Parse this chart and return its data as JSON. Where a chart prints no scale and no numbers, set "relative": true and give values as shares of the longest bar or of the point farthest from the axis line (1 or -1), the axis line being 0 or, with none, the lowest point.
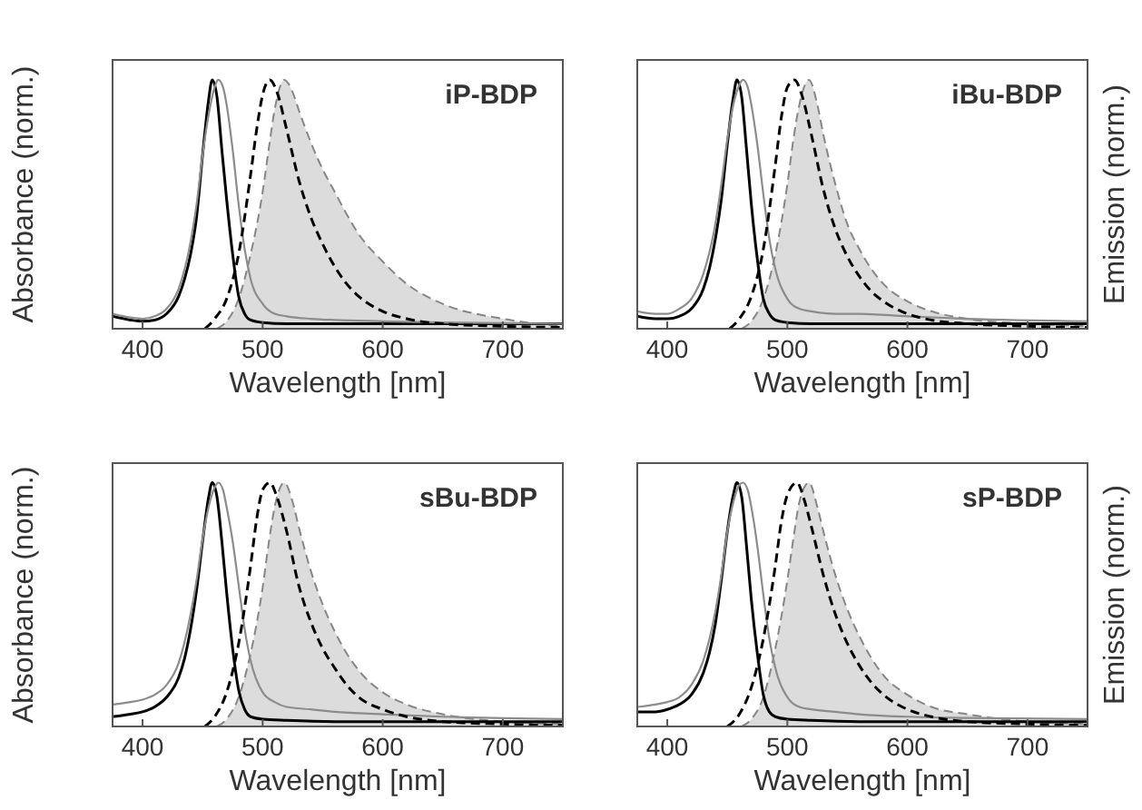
{
  "chart_data": [
    {
      "type": "line",
      "relative": true,
      "xlabel": "Wavelength [nm]",
      "ylabel": "Absorbance (norm.)",
      "annotations": [
        "iP-BDP"
      ],
      "xlim": [
        375,
        750
      ],
      "xticks": [
        400,
        500,
        600,
        700
      ],
      "series": [
        {
          "color": "#000000",
          "line_style": "solid",
          "x": [
            375,
            390,
            400,
            410,
            420,
            430,
            435,
            440,
            445,
            450,
            455,
            458,
            462,
            466,
            470,
            475,
            480,
            485,
            490,
            500,
            520,
            560,
            650,
            750
          ],
          "values": [
            0.05,
            0.035,
            0.03,
            0.035,
            0.06,
            0.13,
            0.2,
            0.3,
            0.45,
            0.7,
            0.92,
            1,
            0.93,
            0.72,
            0.52,
            0.3,
            0.13,
            0.06,
            0.035,
            0.025,
            0.02,
            0.02,
            0.02,
            0.02
          ]
        },
        {
          "color": "#8c8c8c",
          "line_style": "solid",
          "x": [
            375,
            390,
            400,
            410,
            420,
            430,
            440,
            445,
            450,
            455,
            460,
            463,
            467,
            470,
            475,
            480,
            485,
            490,
            500,
            510,
            520,
            540,
            560,
            600,
            650,
            750
          ],
          "values": [
            0.06,
            0.045,
            0.04,
            0.05,
            0.08,
            0.16,
            0.35,
            0.5,
            0.7,
            0.86,
            0.97,
            1,
            0.97,
            0.9,
            0.72,
            0.5,
            0.32,
            0.2,
            0.1,
            0.06,
            0.05,
            0.04,
            0.035,
            0.03,
            0.025,
            0.02
          ]
        },
        {
          "color": "#000000",
          "line_style": "dashed",
          "x": [
            452,
            460,
            470,
            480,
            490,
            495,
            500,
            506,
            512,
            520,
            530,
            540,
            550,
            560,
            570,
            580,
            600,
            620,
            650,
            700,
            750
          ],
          "values": [
            0,
            0.04,
            0.12,
            0.3,
            0.62,
            0.8,
            0.94,
            1,
            0.95,
            0.8,
            0.6,
            0.45,
            0.34,
            0.25,
            0.18,
            0.13,
            0.07,
            0.04,
            0.02,
            0.01,
            0.005
          ]
        },
        {
          "type": "area",
          "color": "#dcdcdc",
          "line_style": "dashed",
          "x": [
            462,
            470,
            480,
            490,
            500,
            505,
            510,
            518,
            525,
            530,
            540,
            550,
            560,
            570,
            580,
            600,
            620,
            650,
            700,
            750
          ],
          "values": [
            0,
            0.03,
            0.12,
            0.3,
            0.55,
            0.72,
            0.88,
            1,
            0.95,
            0.88,
            0.75,
            0.64,
            0.55,
            0.46,
            0.38,
            0.27,
            0.18,
            0.1,
            0.04,
            0.01
          ]
        }
      ]
    },
    {
      "type": "line",
      "relative": true,
      "xlabel": "Wavelength [nm]",
      "y2label": "Emission (norm.)",
      "annotations": [
        "iBu-BDP"
      ],
      "xlim": [
        375,
        750
      ],
      "xticks": [
        400,
        500,
        600,
        700
      ],
      "series": [
        {
          "color": "#000000",
          "line_style": "solid",
          "x": [
            375,
            390,
            400,
            410,
            420,
            430,
            435,
            440,
            445,
            450,
            455,
            458,
            462,
            466,
            470,
            475,
            480,
            485,
            490,
            500,
            520,
            560,
            650,
            750
          ],
          "values": [
            0.05,
            0.04,
            0.04,
            0.05,
            0.08,
            0.16,
            0.24,
            0.36,
            0.52,
            0.74,
            0.93,
            1,
            0.93,
            0.72,
            0.5,
            0.28,
            0.12,
            0.06,
            0.035,
            0.025,
            0.02,
            0.02,
            0.02,
            0.02
          ]
        },
        {
          "color": "#8c8c8c",
          "line_style": "solid",
          "x": [
            375,
            390,
            400,
            410,
            420,
            430,
            440,
            445,
            450,
            455,
            460,
            463,
            467,
            470,
            475,
            480,
            485,
            490,
            500,
            510,
            520,
            540,
            560,
            600,
            650,
            750
          ],
          "values": [
            0.07,
            0.06,
            0.06,
            0.08,
            0.12,
            0.22,
            0.42,
            0.58,
            0.76,
            0.9,
            0.98,
            1,
            0.97,
            0.9,
            0.74,
            0.54,
            0.36,
            0.24,
            0.12,
            0.08,
            0.07,
            0.06,
            0.06,
            0.05,
            0.04,
            0.03
          ]
        },
        {
          "color": "#000000",
          "line_style": "dashed",
          "x": [
            452,
            460,
            470,
            480,
            490,
            495,
            500,
            506,
            512,
            520,
            530,
            540,
            550,
            560,
            570,
            580,
            600,
            620,
            650,
            700,
            750
          ],
          "values": [
            0,
            0.04,
            0.13,
            0.32,
            0.66,
            0.85,
            0.97,
            1,
            0.94,
            0.78,
            0.56,
            0.4,
            0.29,
            0.21,
            0.15,
            0.11,
            0.06,
            0.035,
            0.02,
            0.01,
            0.005
          ]
        },
        {
          "type": "area",
          "color": "#dcdcdc",
          "line_style": "dashed",
          "x": [
            462,
            470,
            480,
            490,
            500,
            505,
            510,
            518,
            525,
            530,
            540,
            550,
            560,
            570,
            580,
            600,
            620,
            650,
            700,
            750
          ],
          "values": [
            0,
            0.03,
            0.12,
            0.3,
            0.58,
            0.76,
            0.9,
            1,
            0.9,
            0.78,
            0.58,
            0.42,
            0.32,
            0.24,
            0.18,
            0.11,
            0.07,
            0.04,
            0.02,
            0.01
          ]
        }
      ]
    },
    {
      "type": "line",
      "relative": true,
      "xlabel": "Wavelength [nm]",
      "ylabel": "Absorbance (norm.)",
      "annotations": [
        "sBu-BDP"
      ],
      "xlim": [
        375,
        750
      ],
      "xticks": [
        400,
        500,
        600,
        700
      ],
      "series": [
        {
          "color": "#000000",
          "line_style": "solid",
          "x": [
            375,
            390,
            400,
            410,
            420,
            430,
            435,
            440,
            445,
            450,
            455,
            458,
            462,
            466,
            470,
            475,
            480,
            485,
            490,
            500,
            520,
            560,
            650,
            750
          ],
          "values": [
            0.04,
            0.05,
            0.06,
            0.08,
            0.12,
            0.2,
            0.28,
            0.4,
            0.56,
            0.76,
            0.94,
            1,
            0.94,
            0.76,
            0.55,
            0.32,
            0.15,
            0.07,
            0.04,
            0.03,
            0.025,
            0.02,
            0.02,
            0.02
          ]
        },
        {
          "color": "#8c8c8c",
          "line_style": "solid",
          "x": [
            375,
            390,
            400,
            410,
            420,
            430,
            440,
            445,
            450,
            455,
            460,
            463,
            467,
            470,
            475,
            480,
            485,
            490,
            500,
            510,
            520,
            540,
            560,
            600,
            650,
            750
          ],
          "values": [
            0.09,
            0.1,
            0.11,
            0.13,
            0.17,
            0.26,
            0.46,
            0.6,
            0.77,
            0.9,
            0.98,
            1,
            0.97,
            0.9,
            0.76,
            0.58,
            0.4,
            0.27,
            0.14,
            0.1,
            0.08,
            0.07,
            0.06,
            0.05,
            0.04,
            0.03
          ]
        },
        {
          "color": "#000000",
          "line_style": "dashed",
          "x": [
            452,
            460,
            470,
            480,
            490,
            495,
            500,
            506,
            512,
            520,
            530,
            540,
            550,
            560,
            570,
            580,
            600,
            620,
            650,
            700,
            750
          ],
          "values": [
            0,
            0.04,
            0.14,
            0.34,
            0.66,
            0.85,
            0.97,
            1,
            0.94,
            0.8,
            0.58,
            0.43,
            0.32,
            0.24,
            0.17,
            0.12,
            0.07,
            0.04,
            0.02,
            0.01,
            0.005
          ]
        },
        {
          "type": "area",
          "color": "#dcdcdc",
          "line_style": "dashed",
          "x": [
            462,
            470,
            480,
            490,
            500,
            505,
            510,
            518,
            525,
            530,
            540,
            550,
            560,
            570,
            580,
            600,
            620,
            650,
            700,
            750
          ],
          "values": [
            0,
            0.03,
            0.12,
            0.3,
            0.57,
            0.75,
            0.9,
            1,
            0.92,
            0.82,
            0.64,
            0.5,
            0.39,
            0.3,
            0.23,
            0.14,
            0.09,
            0.05,
            0.02,
            0.01
          ]
        }
      ]
    },
    {
      "type": "line",
      "relative": true,
      "xlabel": "Wavelength [nm]",
      "y2label": "Emission (norm.)",
      "annotations": [
        "sP-BDP"
      ],
      "xlim": [
        375,
        750
      ],
      "xticks": [
        400,
        500,
        600,
        700
      ],
      "series": [
        {
          "color": "#000000",
          "line_style": "solid",
          "x": [
            375,
            390,
            400,
            410,
            420,
            430,
            435,
            440,
            445,
            450,
            455,
            458,
            462,
            466,
            470,
            475,
            480,
            485,
            490,
            500,
            520,
            560,
            650,
            750
          ],
          "values": [
            0.06,
            0.06,
            0.07,
            0.09,
            0.13,
            0.22,
            0.3,
            0.42,
            0.6,
            0.8,
            0.95,
            1,
            0.94,
            0.74,
            0.52,
            0.3,
            0.13,
            0.06,
            0.04,
            0.03,
            0.025,
            0.02,
            0.02,
            0.02
          ]
        },
        {
          "color": "#8c8c8c",
          "line_style": "solid",
          "x": [
            375,
            390,
            400,
            410,
            420,
            430,
            440,
            445,
            450,
            455,
            460,
            463,
            467,
            470,
            475,
            480,
            485,
            490,
            500,
            510,
            520,
            540,
            560,
            600,
            650,
            750
          ],
          "values": [
            0.08,
            0.09,
            0.1,
            0.12,
            0.17,
            0.27,
            0.47,
            0.62,
            0.8,
            0.92,
            0.99,
            1,
            0.97,
            0.9,
            0.74,
            0.54,
            0.36,
            0.24,
            0.12,
            0.08,
            0.07,
            0.06,
            0.05,
            0.04,
            0.035,
            0.03
          ]
        },
        {
          "color": "#000000",
          "line_style": "dashed",
          "x": [
            450,
            460,
            470,
            480,
            490,
            495,
            500,
            508,
            514,
            520,
            530,
            540,
            550,
            560,
            570,
            580,
            600,
            620,
            650,
            700,
            750
          ],
          "values": [
            0,
            0.05,
            0.16,
            0.36,
            0.66,
            0.84,
            0.95,
            1,
            0.93,
            0.82,
            0.62,
            0.46,
            0.34,
            0.25,
            0.18,
            0.13,
            0.07,
            0.04,
            0.02,
            0.01,
            0.005
          ]
        },
        {
          "type": "area",
          "color": "#dcdcdc",
          "line_style": "dashed",
          "x": [
            462,
            470,
            480,
            490,
            500,
            505,
            510,
            518,
            525,
            530,
            540,
            550,
            560,
            570,
            580,
            600,
            620,
            650,
            700,
            750
          ],
          "values": [
            0,
            0.03,
            0.12,
            0.32,
            0.6,
            0.77,
            0.92,
            1,
            0.9,
            0.8,
            0.62,
            0.48,
            0.37,
            0.28,
            0.21,
            0.13,
            0.08,
            0.05,
            0.02,
            0.01
          ]
        }
      ]
    }
  ]
}
